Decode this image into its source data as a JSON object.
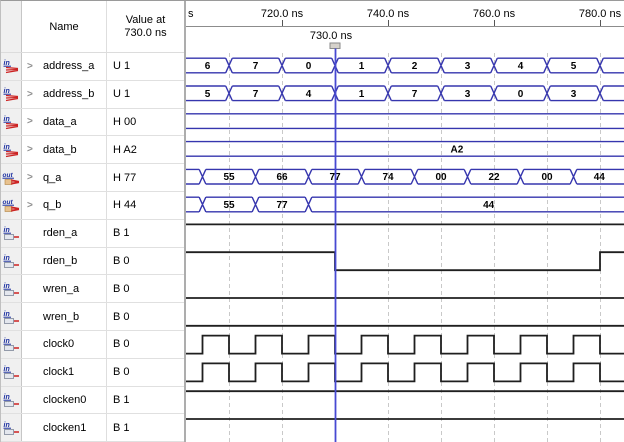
{
  "header": {
    "name_col": "Name",
    "value_col_line1": "Value at",
    "value_col_line2": "730.0 ns"
  },
  "ui": {
    "expand_glyph": ">"
  },
  "ruler": {
    "left_clipped_label": "s",
    "ticks": [
      {
        "t": 720,
        "label": "720.0 ns"
      },
      {
        "t": 740,
        "label": "740.0 ns"
      },
      {
        "t": 760,
        "label": "760.0 ns"
      },
      {
        "t": 780,
        "label": "780.0 ns"
      }
    ],
    "cursor": {
      "t": 730,
      "label": "730.0 ns"
    },
    "grid_times": [
      710,
      720,
      730,
      740,
      750,
      760,
      770,
      780
    ]
  },
  "signals": [
    {
      "name": "address_a",
      "value": "U 1",
      "icon": {
        "type": "bus-in",
        "label": "in"
      },
      "expandable": true,
      "wave": {
        "kind": "bus",
        "segments": [
          {
            "t1": null,
            "t2": 710,
            "label": "6"
          },
          {
            "t1": 710,
            "t2": 720,
            "label": "7"
          },
          {
            "t1": 720,
            "t2": 730,
            "label": "0"
          },
          {
            "t1": 730,
            "t2": 740,
            "label": "1"
          },
          {
            "t1": 740,
            "t2": 750,
            "label": "2"
          },
          {
            "t1": 750,
            "t2": 760,
            "label": "3"
          },
          {
            "t1": 760,
            "t2": 770,
            "label": "4"
          },
          {
            "t1": 770,
            "t2": 780,
            "label": "5"
          },
          {
            "t1": 780,
            "t2": null,
            "label": ""
          }
        ]
      }
    },
    {
      "name": "address_b",
      "value": "U 1",
      "icon": {
        "type": "bus-in",
        "label": "in"
      },
      "expandable": true,
      "wave": {
        "kind": "bus",
        "segments": [
          {
            "t1": null,
            "t2": 710,
            "label": "5"
          },
          {
            "t1": 710,
            "t2": 720,
            "label": "7"
          },
          {
            "t1": 720,
            "t2": 730,
            "label": "4"
          },
          {
            "t1": 730,
            "t2": 740,
            "label": "1"
          },
          {
            "t1": 740,
            "t2": 750,
            "label": "7"
          },
          {
            "t1": 750,
            "t2": 760,
            "label": "3"
          },
          {
            "t1": 760,
            "t2": 770,
            "label": "0"
          },
          {
            "t1": 770,
            "t2": 780,
            "label": "3"
          },
          {
            "t1": 780,
            "t2": null,
            "label": ""
          }
        ]
      }
    },
    {
      "name": "data_a",
      "value": "H 00",
      "icon": {
        "type": "bus-in",
        "label": "in"
      },
      "expandable": true,
      "wave": {
        "kind": "bus",
        "segments": [
          {
            "t1": null,
            "t2": null,
            "label": ""
          }
        ]
      }
    },
    {
      "name": "data_b",
      "value": "H A2",
      "icon": {
        "type": "bus-in",
        "label": "in"
      },
      "expandable": true,
      "wave": {
        "kind": "bus",
        "segments": [
          {
            "t1": null,
            "t2": null,
            "label": "A2",
            "label_t": 753
          }
        ]
      }
    },
    {
      "name": "q_a",
      "value": "H 77",
      "icon": {
        "type": "bus-out",
        "label": "out"
      },
      "expandable": true,
      "wave": {
        "kind": "bus",
        "segments": [
          {
            "t1": null,
            "t2": 705,
            "label": ""
          },
          {
            "t1": 705,
            "t2": 715,
            "label": "55"
          },
          {
            "t1": 715,
            "t2": 725,
            "label": "66"
          },
          {
            "t1": 725,
            "t2": 735,
            "label": "77"
          },
          {
            "t1": 735,
            "t2": 745,
            "label": "74"
          },
          {
            "t1": 745,
            "t2": 755,
            "label": "00"
          },
          {
            "t1": 755,
            "t2": 765,
            "label": "22"
          },
          {
            "t1": 765,
            "t2": 775,
            "label": "00"
          },
          {
            "t1": 775,
            "t2": null,
            "label": "44"
          }
        ]
      }
    },
    {
      "name": "q_b",
      "value": "H 44",
      "icon": {
        "type": "bus-out",
        "label": "out"
      },
      "expandable": true,
      "wave": {
        "kind": "bus",
        "segments": [
          {
            "t1": null,
            "t2": 705,
            "label": ""
          },
          {
            "t1": 705,
            "t2": 715,
            "label": "55"
          },
          {
            "t1": 715,
            "t2": 725,
            "label": "77"
          },
          {
            "t1": 725,
            "t2": null,
            "label": "44",
            "label_t": 759
          }
        ]
      }
    },
    {
      "name": "rden_a",
      "value": "B 1",
      "icon": {
        "type": "bit-in",
        "label": "in"
      },
      "expandable": false,
      "wave": {
        "kind": "bit",
        "initial": 1,
        "toggles": []
      }
    },
    {
      "name": "rden_b",
      "value": "B 0",
      "icon": {
        "type": "bit-in",
        "label": "in"
      },
      "expandable": false,
      "wave": {
        "kind": "bit",
        "initial": 1,
        "toggles": [
          730,
          780
        ]
      }
    },
    {
      "name": "wren_a",
      "value": "B 0",
      "icon": {
        "type": "bit-in",
        "label": "in"
      },
      "expandable": false,
      "wave": {
        "kind": "bit",
        "initial": 0,
        "toggles": []
      }
    },
    {
      "name": "wren_b",
      "value": "B 0",
      "icon": {
        "type": "bit-in",
        "label": "in"
      },
      "expandable": false,
      "wave": {
        "kind": "bit",
        "initial": 0,
        "toggles": []
      }
    },
    {
      "name": "clock0",
      "value": "B 0",
      "icon": {
        "type": "bit-in",
        "label": "in"
      },
      "expandable": false,
      "wave": {
        "kind": "bit",
        "initial": 0,
        "toggles": [
          705,
          710,
          715,
          720,
          725,
          730,
          735,
          740,
          745,
          750,
          755,
          760,
          765,
          770,
          775,
          780
        ]
      }
    },
    {
      "name": "clock1",
      "value": "B 0",
      "icon": {
        "type": "bit-in",
        "label": "in"
      },
      "expandable": false,
      "wave": {
        "kind": "bit",
        "initial": 0,
        "toggles": [
          705,
          710,
          715,
          720,
          725,
          730,
          735,
          740,
          745,
          750,
          755,
          760,
          765,
          770,
          775,
          780
        ]
      }
    },
    {
      "name": "clocken0",
      "value": "B 1",
      "icon": {
        "type": "bit-in",
        "label": "in"
      },
      "expandable": false,
      "wave": {
        "kind": "bit",
        "initial": 1,
        "toggles": []
      }
    },
    {
      "name": "clocken1",
      "value": "B 1",
      "icon": {
        "type": "bit-in",
        "label": "in"
      },
      "expandable": false,
      "wave": {
        "kind": "bit",
        "initial": 1,
        "toggles": []
      }
    }
  ],
  "colors": {
    "bus_stroke": "#3636ae",
    "bit_stroke": "#1f1f1f",
    "cursor": "#4749d2",
    "grid": "#c9c9c9",
    "ruler_border": "#8c8c8c",
    "tick": "#555555",
    "text": "#000000",
    "icon_blue": "#1a2ea0",
    "icon_red": "#cc2222",
    "icon_tan": "#e8c28e"
  }
}
